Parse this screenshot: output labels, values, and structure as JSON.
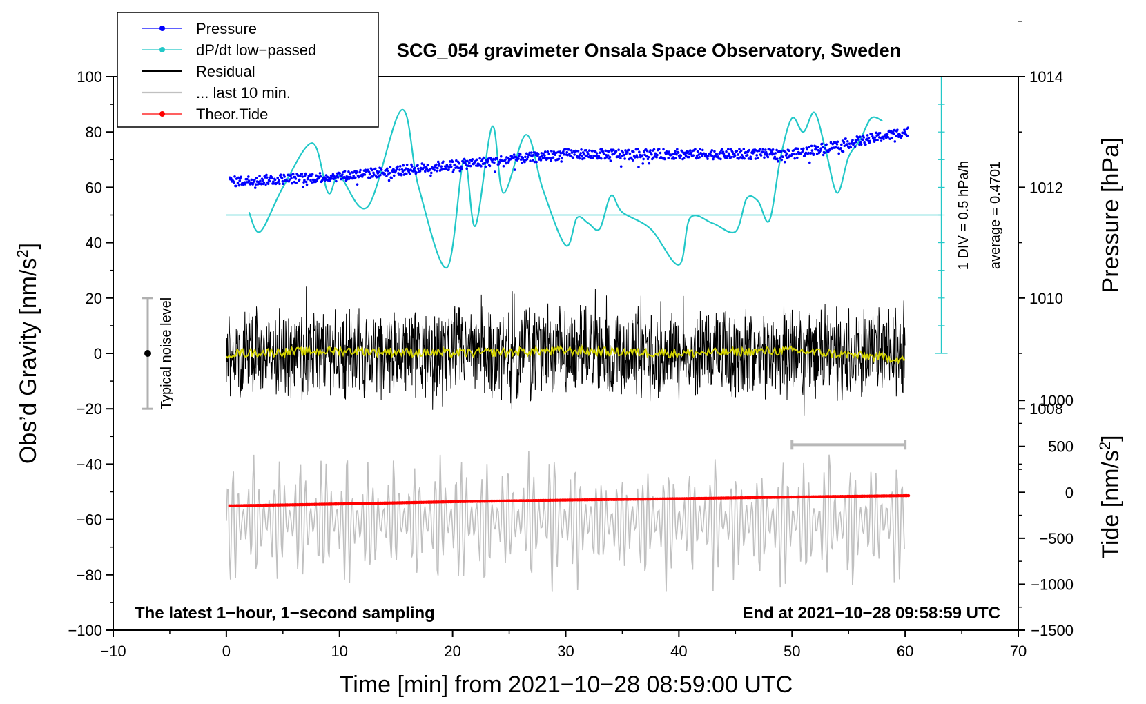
{
  "chart_data": {
    "type": "line",
    "title": "SCG_054 gravimeter Onsala Space Observatory, Sweden",
    "xlabel": "Time [min] from 2021−10−28 08:59:00 UTC",
    "ylabel_left": "Obs’d Gravity [nm/s²]",
    "ylabel_left_main": "Obs’d Gravity [nm/s",
    "ylabel_left_sup": "2",
    "ylabel_left_end": "]",
    "ylabel_right_pressure": "Pressure [hPa]",
    "ylabel_right_tide": "Tide [nm/s²]",
    "ylabel_right_tide_main": "Tide [nm/s",
    "ylabel_right_tide_sup": "2",
    "ylabel_right_tide_end": "]",
    "xlim": [
      -10,
      70
    ],
    "ylim": [
      -100,
      100
    ],
    "pressure_lim": [
      1006,
      1016
    ],
    "tide_lim": [
      -1500,
      1500
    ],
    "x_ticks": [
      "−10",
      "0",
      "10",
      "20",
      "30",
      "40",
      "50",
      "60",
      "70"
    ],
    "x_tick_values": [
      -10,
      0,
      10,
      20,
      30,
      40,
      50,
      60,
      70
    ],
    "y_ticks_left": [
      "100",
      "80",
      "60",
      "40",
      "20",
      "0",
      "−20",
      "−40",
      "−60",
      "−80",
      "−100"
    ],
    "y_tick_values_left": [
      100,
      80,
      60,
      40,
      20,
      0,
      -20,
      -40,
      -60,
      -80,
      -100
    ],
    "pressure_ticks": [
      "1014",
      "1012",
      "1010",
      "1008"
    ],
    "pressure_tick_values": [
      1014,
      1012,
      1010,
      1008
    ],
    "tide_ticks": [
      "1000",
      "500",
      "0",
      "−500",
      "−1000",
      "−1500"
    ],
    "tide_tick_values": [
      1000,
      500,
      0,
      -500,
      -1000,
      -1500
    ],
    "annotation_left": "The latest 1−hour, 1−second sampling",
    "annotation_right": "End at 2021−10−28 09:58:59 UTC",
    "noise_label": "Typical noise level",
    "noise_level": 20,
    "dpdt_scale_label": "1 DIV = 0.5 hPa/h",
    "dpdt_average_label": "average = 0.4701",
    "dpdt_baseline_gravity": 50,
    "legend": [
      {
        "label": "Pressure",
        "color": "#0000ff",
        "marker": "dot"
      },
      {
        "label": "dP/dt low−passed",
        "color": "#22c8c8",
        "marker": "dot"
      },
      {
        "label": "Residual",
        "color": "#000000",
        "marker": "none"
      },
      {
        "label": "... last 10 min.",
        "color": "#c0c0c0",
        "marker": "none"
      },
      {
        "label": "Theor.Tide",
        "color": "#ff0000",
        "marker": "dot"
      }
    ],
    "series": [
      {
        "name": "Pressure",
        "unit": "hPa",
        "x": [
          0,
          10,
          20,
          30,
          40,
          50,
          60
        ],
        "values": [
          1012.1,
          1012.2,
          1012.4,
          1012.6,
          1012.6,
          1012.6,
          1013.0
        ],
        "color": "#0000ff"
      },
      {
        "name": "dP/dt low−passed",
        "unit": "nm/s² (plotted)",
        "x": [
          2,
          3,
          5,
          7.6,
          9,
          10,
          12.5,
          15.5,
          17,
          19.5,
          21,
          22,
          23.5,
          24.5,
          26.5,
          28,
          30,
          31,
          32,
          33,
          34,
          35,
          37.5,
          40,
          41,
          43,
          45,
          46,
          47,
          48,
          49,
          50,
          51,
          52,
          53,
          54,
          55,
          56,
          57,
          58
        ],
        "values": [
          51,
          44,
          60,
          76,
          58,
          64,
          53,
          88,
          60,
          31,
          70,
          46,
          82,
          58,
          79,
          59,
          39,
          49,
          47,
          45,
          57,
          51,
          45,
          32,
          49,
          47,
          44,
          56,
          55,
          48,
          71,
          85,
          80,
          87,
          73,
          58,
          71,
          77,
          85,
          84
        ],
        "color": "#22c8c8"
      },
      {
        "name": "Residual",
        "unit": "nm/s²",
        "x": [
          0,
          10,
          20,
          30,
          40,
          50,
          60
        ],
        "values": [
          0,
          0,
          0,
          0,
          0,
          0,
          0
        ],
        "envelope": [
          -28,
          38
        ],
        "color": "#000000"
      },
      {
        "name": "Residual smoothed",
        "unit": "nm/s²",
        "x": [
          0,
          10,
          20,
          30,
          40,
          50,
          60
        ],
        "values": [
          0,
          1,
          0,
          1,
          0,
          1,
          -2
        ],
        "color": "#d4d400"
      },
      {
        "name": "... last 10 min.",
        "unit": "nm/s²",
        "x": [
          0,
          10,
          20,
          30,
          40,
          50,
          60
        ],
        "values": [
          -62,
          -62,
          -62,
          -62,
          -62,
          -62,
          -62
        ],
        "envelope": [
          -90,
          -35
        ],
        "color": "#c0c0c0"
      },
      {
        "name": "Theor.Tide",
        "unit": "nm/s²",
        "x": [
          0,
          10,
          20,
          30,
          40,
          50,
          60
        ],
        "values": [
          -105,
          -70,
          -30,
          0,
          25,
          55,
          80
        ],
        "color": "#ff0000"
      }
    ],
    "last10_bar_x": [
      50,
      60
    ]
  }
}
